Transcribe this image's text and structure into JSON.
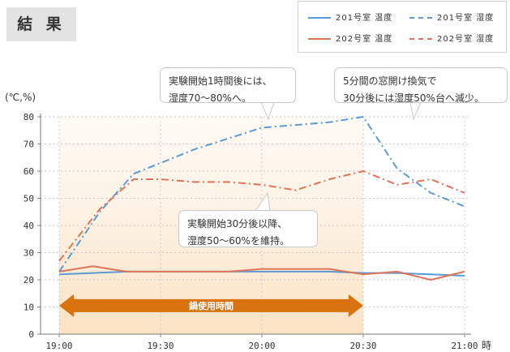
{
  "header": {
    "title": "結 果"
  },
  "legend": {
    "items": [
      {
        "label": "201号室 温度",
        "color": "#5b9bd5",
        "style": "solid"
      },
      {
        "label": "201号室 湿度",
        "color": "#5b9bd5",
        "style": "dashed"
      },
      {
        "label": "202号室 温度",
        "color": "#e0745a",
        "style": "solid"
      },
      {
        "label": "202号室 湿度",
        "color": "#e0745a",
        "style": "dashed"
      }
    ]
  },
  "callouts": {
    "start": {
      "line1": "実験開始1時間後には、",
      "line2": "湿度70〜80%へ。"
    },
    "window": {
      "line1": "5分間の窓開け換気で",
      "line2": "30分後には湿度50%台へ減少。"
    },
    "maintain": {
      "line1": "実験開始30分後以降、",
      "line2": "湿度50〜60%を維持。"
    }
  },
  "chart_data": {
    "type": "line",
    "ylabel": "(℃,%)",
    "xlabel": "時",
    "ylim": [
      0,
      80
    ],
    "yticks": [
      0,
      10,
      20,
      30,
      40,
      50,
      60,
      70,
      80
    ],
    "xticks": [
      {
        "label": "19:00",
        "t": 0
      },
      {
        "label": "19:30",
        "t": 30
      },
      {
        "label": "20:00",
        "t": 60
      },
      {
        "label": "20:30",
        "t": 90
      },
      {
        "label": "21:00",
        "t": 120
      }
    ],
    "xrange_minutes": [
      0,
      120
    ],
    "grid": true,
    "highlight": {
      "label": "鍋使用時間",
      "start": 0,
      "end": 90,
      "color": "#d9730f"
    },
    "series": [
      {
        "name": "201号室 温度",
        "color": "#5b9bd5",
        "style": "solid",
        "x": [
          0,
          10,
          20,
          30,
          40,
          50,
          60,
          70,
          80,
          90,
          100,
          110,
          120
        ],
        "y": [
          22,
          22.5,
          23,
          23,
          23,
          23,
          23,
          23,
          23,
          22.5,
          22.5,
          22,
          21.5
        ]
      },
      {
        "name": "201号室 湿度",
        "color": "#5b9bd5",
        "style": "dashed",
        "x": [
          0,
          12,
          22,
          30,
          40,
          50,
          60,
          70,
          80,
          90,
          100,
          110,
          120
        ],
        "y": [
          23,
          45,
          59,
          63,
          68,
          72,
          76,
          77,
          78,
          80,
          61,
          52,
          47
        ]
      },
      {
        "name": "202号室 温度",
        "color": "#e0745a",
        "style": "solid",
        "x": [
          0,
          10,
          20,
          30,
          40,
          50,
          60,
          70,
          80,
          90,
          100,
          110,
          120
        ],
        "y": [
          23,
          25,
          23,
          23,
          23,
          23,
          24,
          24,
          24,
          22,
          23,
          20,
          23
        ]
      },
      {
        "name": "202号室 湿度",
        "color": "#e0745a",
        "style": "dashed",
        "x": [
          0,
          12,
          22,
          30,
          40,
          50,
          60,
          70,
          80,
          90,
          100,
          110,
          120
        ],
        "y": [
          27,
          46,
          57,
          57,
          56,
          56,
          55,
          53,
          57,
          60,
          55,
          57,
          52
        ]
      }
    ]
  }
}
